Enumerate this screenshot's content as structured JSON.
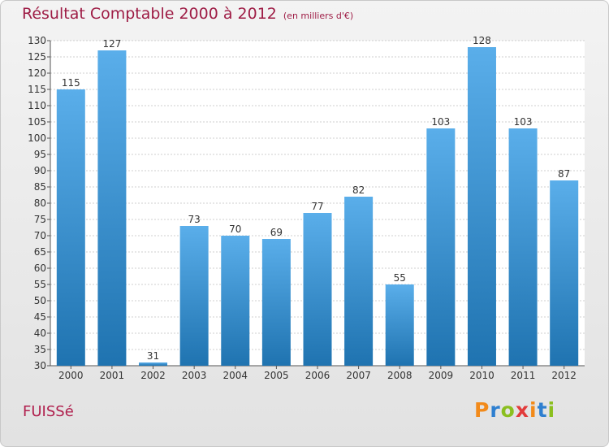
{
  "header": {
    "title": "Résultat Comptable 2000 à 2012",
    "unit": "(en milliers d'€)"
  },
  "footer": {
    "commune": "FUISSé",
    "logo": "Proxiti"
  },
  "colors": {
    "title": "#9e1c45",
    "bar_light": "#5aaeea",
    "bar_dark": "#1f73b0",
    "grid": "#cfcfcf",
    "logo_letters": [
      "#f28a1a",
      "#2e7fd0",
      "#8bbf1f",
      "#e23b3b",
      "#f28a1a",
      "#2e7fd0",
      "#8bbf1f"
    ]
  },
  "chart_data": {
    "type": "bar",
    "title": "Résultat Comptable 2000 à 2012",
    "subtitle": "(en milliers d'€)",
    "categories": [
      "2000",
      "2001",
      "2002",
      "2003",
      "2004",
      "2005",
      "2006",
      "2007",
      "2008",
      "2009",
      "2010",
      "2011",
      "2012"
    ],
    "values": [
      115,
      127,
      31,
      73,
      70,
      69,
      77,
      82,
      55,
      103,
      128,
      103,
      87
    ],
    "ylim": [
      30,
      130
    ],
    "yticks": [
      30,
      35,
      40,
      45,
      50,
      55,
      60,
      65,
      70,
      75,
      80,
      85,
      90,
      95,
      100,
      105,
      110,
      115,
      120,
      125,
      130
    ],
    "grid": true,
    "data_labels": true
  }
}
